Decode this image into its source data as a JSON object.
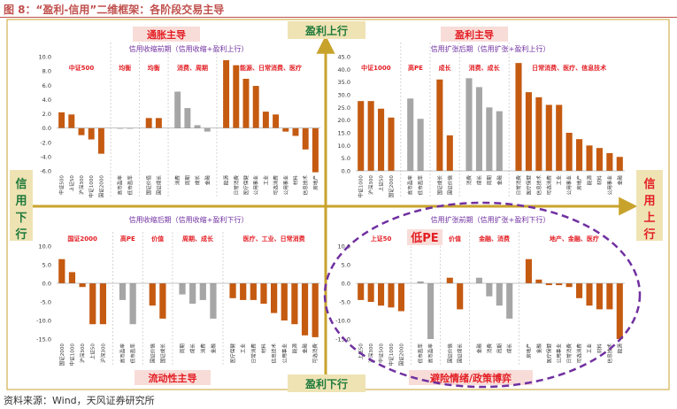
{
  "figure_title": "图 8：“盈利-信用”二维框架：各阶段交易主导",
  "source": "资料来源：Wind，天风证券研究所",
  "axis": {
    "top": "盈利上行",
    "bottom": "盈利下行",
    "left": "信用下行",
    "right": "信用上行"
  },
  "colors": {
    "orange": "#c55a11",
    "gray": "#a6a6a6",
    "red_text": "#e31e24",
    "purple": "#7030a0",
    "axis_gold": "#c8a32c",
    "pink_box": "#f8dcd8"
  },
  "quadrant_labels": {
    "q1": "通胀主导",
    "q2": "盈利主导",
    "q3": "流动性主导",
    "q4": "避险情绪/政策博弈"
  },
  "annotation": "低PE",
  "chart_data": [
    {
      "type": "bar",
      "title": "信用收缩前期（信用收缩+盈利上行）",
      "ylim": [
        -6.0,
        10.0
      ],
      "yticks": [
        "10.0",
        "8.0",
        "6.0",
        "4.0",
        "2.0",
        "0.0",
        "-2.0",
        "-4.0",
        "-6.0"
      ],
      "groups": [
        {
          "label": "中证500",
          "color": "orange",
          "categories": [
            "中证500",
            "上证50",
            "沪深300",
            "中证1000",
            "国证2000"
          ],
          "values": [
            2.2,
            1.9,
            -1.0,
            -1.6,
            -3.6
          ]
        },
        {
          "label": "均衡",
          "color": "gray",
          "categories": [
            "高市盈率",
            "低市盈率"
          ],
          "values": [
            -0.1,
            -0.1
          ]
        },
        {
          "label": "均衡",
          "color": "orange",
          "categories": [
            "国证价值",
            "国证成长"
          ],
          "values": [
            1.4,
            1.4
          ]
        },
        {
          "label": "消费、周期",
          "color": "gray",
          "categories": [
            "消费",
            "周期",
            "成长",
            "金融"
          ],
          "values": [
            5.1,
            2.8,
            0.4,
            -0.5
          ]
        },
        {
          "label": "能源、日常消费、医疗",
          "color": "orange",
          "categories": [
            "能源",
            "日常消费",
            "医疗保健",
            "公用事业",
            "工业",
            "可选消费",
            "公用事业",
            "材料",
            "信息技术",
            "房地产"
          ],
          "values": [
            9.5,
            8.8,
            6.9,
            5.9,
            2.3,
            1.9,
            -0.5,
            -1.1,
            -3.0,
            -6.2
          ]
        }
      ]
    },
    {
      "type": "bar",
      "title": "信用扩张后期（信用扩张+盈利上行）",
      "ylim": [
        0,
        45.0
      ],
      "yticks": [
        "45.0",
        "40.0",
        "35.0",
        "30.0",
        "25.0",
        "20.0",
        "15.0",
        "10.0",
        "5.0",
        "0.0"
      ],
      "groups": [
        {
          "label": "中证1000",
          "color": "orange",
          "categories": [
            "中证1000",
            "沪深300",
            "上证50",
            "国证2000"
          ],
          "values": [
            27.5,
            27.5,
            24.5,
            21.0
          ]
        },
        {
          "label": "高PE",
          "color": "gray",
          "categories": [
            "高市盈率",
            "低市盈率"
          ],
          "values": [
            28.5,
            20.5
          ]
        },
        {
          "label": "成长",
          "color": "orange",
          "categories": [
            "国证成长",
            "国证价值"
          ],
          "values": [
            36.0,
            14.0
          ]
        },
        {
          "label": "消费、成长",
          "color": "gray",
          "categories": [
            "消费",
            "成长",
            "周期",
            "金融"
          ],
          "values": [
            36.5,
            33.0,
            25.0,
            23.5
          ]
        },
        {
          "label": "日常消费、医疗、信息技术",
          "color": "orange",
          "categories": [
            "日常消费",
            "医疗保健",
            "信息技术",
            "可选消费",
            "工业",
            "公用事业",
            "房地产",
            "能源",
            "材料",
            "公用事业",
            "金融"
          ],
          "values": [
            42.5,
            31.0,
            29.0,
            26.0,
            26.0,
            15.0,
            12.5,
            10.0,
            9.0,
            7.0,
            5.5
          ]
        }
      ]
    },
    {
      "type": "bar",
      "title": "信用收缩后期（信用收缩+盈利下行）",
      "ylim": [
        -15.0,
        10.0
      ],
      "yticks": [
        "10.0",
        "5.0",
        "0.0",
        "-5.0",
        "-10.0",
        "-15.0"
      ],
      "groups": [
        {
          "label": "国证2000",
          "color": "orange",
          "categories": [
            "国证2000",
            "中证1000",
            "沪深300",
            "上证50",
            "沪深300"
          ],
          "values": [
            6.5,
            3.0,
            -1.0,
            -11.0,
            -11.0
          ]
        },
        {
          "label": "高PE",
          "color": "gray",
          "categories": [
            "高市盈率",
            "低市盈率"
          ],
          "values": [
            -4.5,
            -11.0
          ]
        },
        {
          "label": "价值",
          "color": "orange",
          "categories": [
            "国证价值",
            "国证成长"
          ],
          "values": [
            -6.0,
            -9.5
          ]
        },
        {
          "label": "周期、成长",
          "color": "gray",
          "categories": [
            "周期",
            "成长",
            "消费",
            "金融"
          ],
          "values": [
            -3.0,
            -5.5,
            -4.5,
            -9.5
          ]
        },
        {
          "label": "医疗、工业、日常消费",
          "color": "orange",
          "categories": [
            "医疗保健",
            "工业",
            "日常消费",
            "材料",
            "信息技术",
            "公用事业",
            "能源",
            "金融",
            "可选消费"
          ],
          "values": [
            -4.0,
            -4.5,
            -4.5,
            -5.5,
            -8.0,
            -10.0,
            -11.0,
            -14.0,
            -14.5
          ]
        }
      ]
    },
    {
      "type": "bar",
      "title": "信用扩张前期（信用扩张+盈利下行）",
      "ylim": [
        -15.0,
        10.0
      ],
      "yticks": [
        "10.0",
        "5.0",
        "0.0",
        "-5.0",
        "-10.0",
        "-15.0"
      ],
      "groups": [
        {
          "label": "上证50",
          "color": "orange",
          "categories": [
            "上证50",
            "沪深300",
            "中证500",
            "中证1000",
            "国证2000"
          ],
          "values": [
            -4.5,
            -5.0,
            -6.0,
            -6.5,
            -7.5
          ]
        },
        {
          "label": "低PE",
          "color": "gray",
          "categories": [
            "低市盈率",
            "高市盈率"
          ],
          "values": [
            0.5,
            -15.0
          ]
        },
        {
          "label": "价值",
          "color": "orange",
          "categories": [
            "国证价值",
            "国证成长"
          ],
          "values": [
            1.5,
            -7.0
          ]
        },
        {
          "label": "金融、消费",
          "color": "gray",
          "categories": [
            "金融",
            "消费",
            "周期",
            "成长"
          ],
          "values": [
            1.5,
            -3.5,
            -6.0,
            -9.5
          ]
        },
        {
          "label": "地产、金融、医疗",
          "color": "orange",
          "categories": [
            "房地产",
            "金融",
            "医疗保健",
            "公用事业",
            "日常消费",
            "可选消费",
            "工业",
            "材料",
            "信息技术",
            "能源"
          ],
          "values": [
            6.5,
            1.0,
            -0.5,
            -0.5,
            -1.0,
            -4.0,
            -6.0,
            -7.0,
            -7.0,
            -15.0
          ]
        }
      ]
    }
  ]
}
